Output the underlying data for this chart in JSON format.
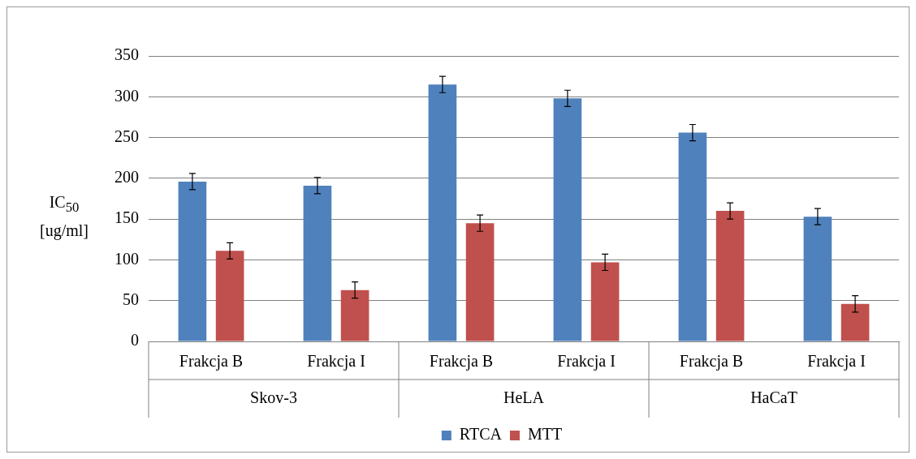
{
  "chart_data": {
    "type": "bar",
    "ylabel": "IC$_{50}$ [ug/ml]",
    "categories": [
      "Frakcja B",
      "Frakcja I",
      "Frakcja B",
      "Frakcja I",
      "Frakcja B",
      "Frakcja I"
    ],
    "annotations": [
      "Skov-3",
      "HeLA",
      "HaCaT"
    ],
    "series": [
      {
        "name": "RTCA",
        "color": "#4f81bd",
        "values": [
          196,
          191,
          315,
          298,
          256,
          153
        ],
        "errors": [
          10,
          10,
          10,
          10,
          10,
          10
        ]
      },
      {
        "name": "MTT",
        "color": "#c0504d",
        "values": [
          111,
          63,
          145,
          97,
          160,
          46
        ],
        "errors": [
          10,
          10,
          10,
          10,
          10,
          10
        ]
      }
    ],
    "ylim": [
      0,
      350
    ],
    "yticks": [
      0,
      50,
      100,
      150,
      200,
      250,
      300,
      350
    ],
    "grid": "y",
    "legend": "bottom"
  }
}
